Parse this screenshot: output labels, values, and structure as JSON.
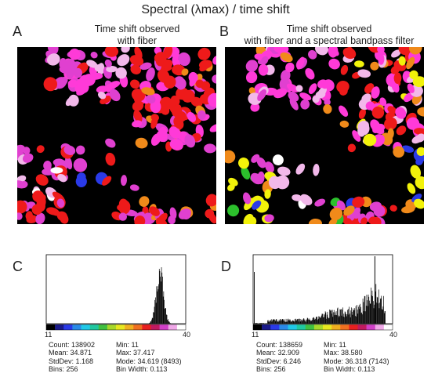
{
  "figure": {
    "title": "Spectral (λmax) / time shift"
  },
  "panels": {
    "A": {
      "letter": "A",
      "caption_line1": "Time shift observed",
      "caption_line2": "with fiber"
    },
    "B": {
      "letter": "B",
      "caption_line1": "Time shift observed",
      "caption_line2": "with fiber and a spectral bandpass filter"
    },
    "C": {
      "letter": "C"
    },
    "D": {
      "letter": "D"
    }
  },
  "colors": {
    "magenta": "#e040d0",
    "pink": "#ff3ad8",
    "red": "#ee1a1a",
    "lightpink": "#f2b8ea",
    "orange": "#f08a1a",
    "yellow": "#f2f20a",
    "green": "#2cc02c",
    "blue": "#2a3ae8",
    "white": "#ffffff"
  },
  "chart_data": [
    {
      "id": "C",
      "type": "bar",
      "title": "",
      "xlabel": "",
      "ylabel": "",
      "xlim": [
        11,
        40
      ],
      "x_tick_labels": [
        "11",
        "40"
      ],
      "colorbar": [
        "#000000",
        "#1a1a8a",
        "#2a3ae8",
        "#2a8ae8",
        "#20c8e8",
        "#20c8a0",
        "#40c040",
        "#a8d82a",
        "#e8e820",
        "#f0b020",
        "#f07020",
        "#e82020",
        "#c01a60",
        "#d040c8",
        "#f0a8e8",
        "#ffffff"
      ],
      "distribution": {
        "mean": 34.871,
        "stddev": 1.168,
        "min": 11,
        "max": 37.417,
        "mode": 34.619
      },
      "stats": {
        "count": "Count: 138902",
        "mean": "Mean: 34.871",
        "stddev": "StdDev: 1.168",
        "bins": "Bins: 256",
        "min": "Min: 11",
        "max": "Max: 37.417",
        "mode": "Mode: 34.619 (8493)",
        "binwidth": "Bin Width: 0.113"
      }
    },
    {
      "id": "D",
      "type": "bar",
      "title": "",
      "xlabel": "",
      "ylabel": "",
      "xlim": [
        11,
        40
      ],
      "x_tick_labels": [
        "11",
        "40"
      ],
      "colorbar": [
        "#000000",
        "#1a1a8a",
        "#2a3ae8",
        "#2a8ae8",
        "#20c8e8",
        "#20c8a0",
        "#40c040",
        "#a8d82a",
        "#e8e820",
        "#f0b020",
        "#f07020",
        "#e82020",
        "#c01a60",
        "#d040c8",
        "#f0a8e8",
        "#ffffff"
      ],
      "distribution": {
        "mean": 32.909,
        "stddev": 6.246,
        "min": 11,
        "max": 38.58,
        "mode": 36.318
      },
      "stats": {
        "count": "Count: 138659",
        "mean": "Mean: 32.909",
        "stddev": "StdDev: 6.246",
        "bins": "Bins: 256",
        "min": "Min: 11",
        "max": "Max: 38.580",
        "mode": "Mode: 36.318 (7143)",
        "binwidth": "Bin Width: 0.113"
      }
    }
  ]
}
